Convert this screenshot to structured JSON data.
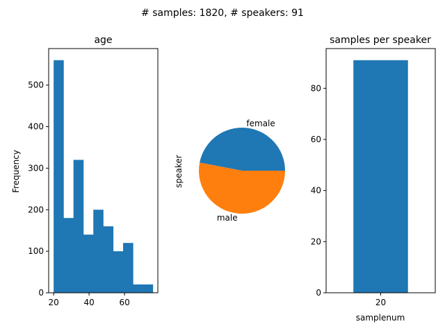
{
  "figure": {
    "suptitle": "# samples: 1820, # speakers: 91"
  },
  "chart_data": [
    {
      "type": "bar",
      "subtype": "histogram",
      "title": "age",
      "xlabel": "",
      "ylabel": "Frequency",
      "bins": [
        {
          "start": 20.0,
          "end": 25.6,
          "value": 560
        },
        {
          "start": 25.6,
          "end": 31.2,
          "value": 180
        },
        {
          "start": 31.2,
          "end": 36.8,
          "value": 320
        },
        {
          "start": 36.8,
          "end": 42.4,
          "value": 140
        },
        {
          "start": 42.4,
          "end": 48.0,
          "value": 200
        },
        {
          "start": 48.0,
          "end": 53.6,
          "value": 160
        },
        {
          "start": 53.6,
          "end": 59.2,
          "value": 100
        },
        {
          "start": 59.2,
          "end": 64.8,
          "value": 120
        },
        {
          "start": 64.8,
          "end": 70.4,
          "value": 20
        },
        {
          "start": 70.4,
          "end": 76.0,
          "value": 20
        }
      ],
      "xlim": [
        17.2,
        78.8
      ],
      "ylim": [
        0,
        588
      ],
      "xticks": [
        20,
        40,
        60
      ],
      "yticks": [
        0,
        100,
        200,
        300,
        400,
        500
      ],
      "color": "#1f77b4",
      "grid": false
    },
    {
      "type": "pie",
      "title": "",
      "ylabel": "speaker",
      "slices": [
        {
          "label": "female",
          "value": 47,
          "color": "#1f77b4"
        },
        {
          "label": "male",
          "value": 53,
          "color": "#ff7f0e"
        }
      ],
      "startangle_deg": 0,
      "grid": false
    },
    {
      "type": "bar",
      "title": "samples per speaker",
      "xlabel": "samplenum",
      "ylabel": "",
      "categories": [
        "20"
      ],
      "values": [
        91
      ],
      "ylim": [
        0,
        95.55
      ],
      "yticks": [
        0,
        20,
        40,
        60,
        80
      ],
      "color": "#1f77b4",
      "grid": false
    }
  ]
}
